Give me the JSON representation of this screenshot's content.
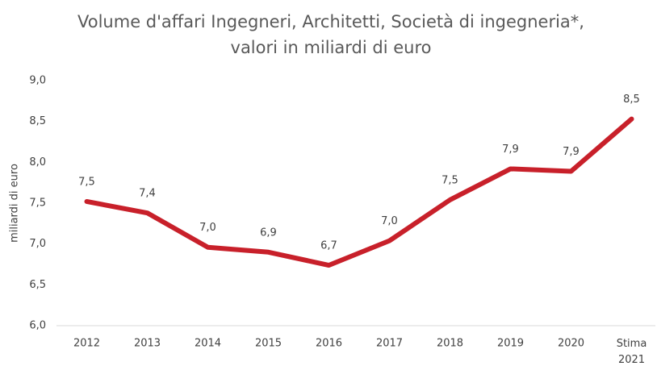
{
  "chart_data": {
    "type": "line",
    "title": [
      "Volume d'affari Ingegneri, Architetti, Società di ingegneria*,",
      "valori in miliardi di euro"
    ],
    "y_label": "miliardi di euro",
    "categories": [
      "2012",
      "2013",
      "2014",
      "2015",
      "2016",
      "2017",
      "2018",
      "2019",
      "2020",
      "Stima 2021"
    ],
    "series": [
      {
        "name": "Volume d'affari",
        "color": "#c8202a",
        "values": [
          7.52,
          7.38,
          6.96,
          6.9,
          6.74,
          7.04,
          7.54,
          7.92,
          7.89,
          8.53
        ],
        "value_labels": [
          "7,5",
          "7,4",
          "7,0",
          "6,9",
          "6,7",
          "7,0",
          "7,5",
          "7,9",
          "7,9",
          "8,5"
        ]
      }
    ],
    "ylim": [
      6,
      9
    ],
    "yticks": [
      {
        "value": 6,
        "label": "6,0"
      },
      {
        "value": 6.5,
        "label": "6,5"
      },
      {
        "value": 7,
        "label": "7,0"
      },
      {
        "value": 7.5,
        "label": "7,5"
      },
      {
        "value": 8,
        "label": "8,0"
      },
      {
        "value": 8.5,
        "label": "8,5"
      },
      {
        "value": 9,
        "label": "9,0"
      }
    ],
    "grid": false
  }
}
